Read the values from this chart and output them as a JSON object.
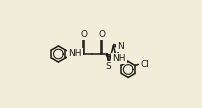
{
  "bg_color": "#f2edd8",
  "line_color": "#1a1a1a",
  "line_width": 1.1,
  "text_color": "#1a1a1a",
  "font_size": 6.5,
  "xlim": [
    0.0,
    1.0
  ],
  "ylim": [
    0.0,
    1.0
  ],
  "figw": 2.02,
  "figh": 1.08,
  "dpi": 100
}
